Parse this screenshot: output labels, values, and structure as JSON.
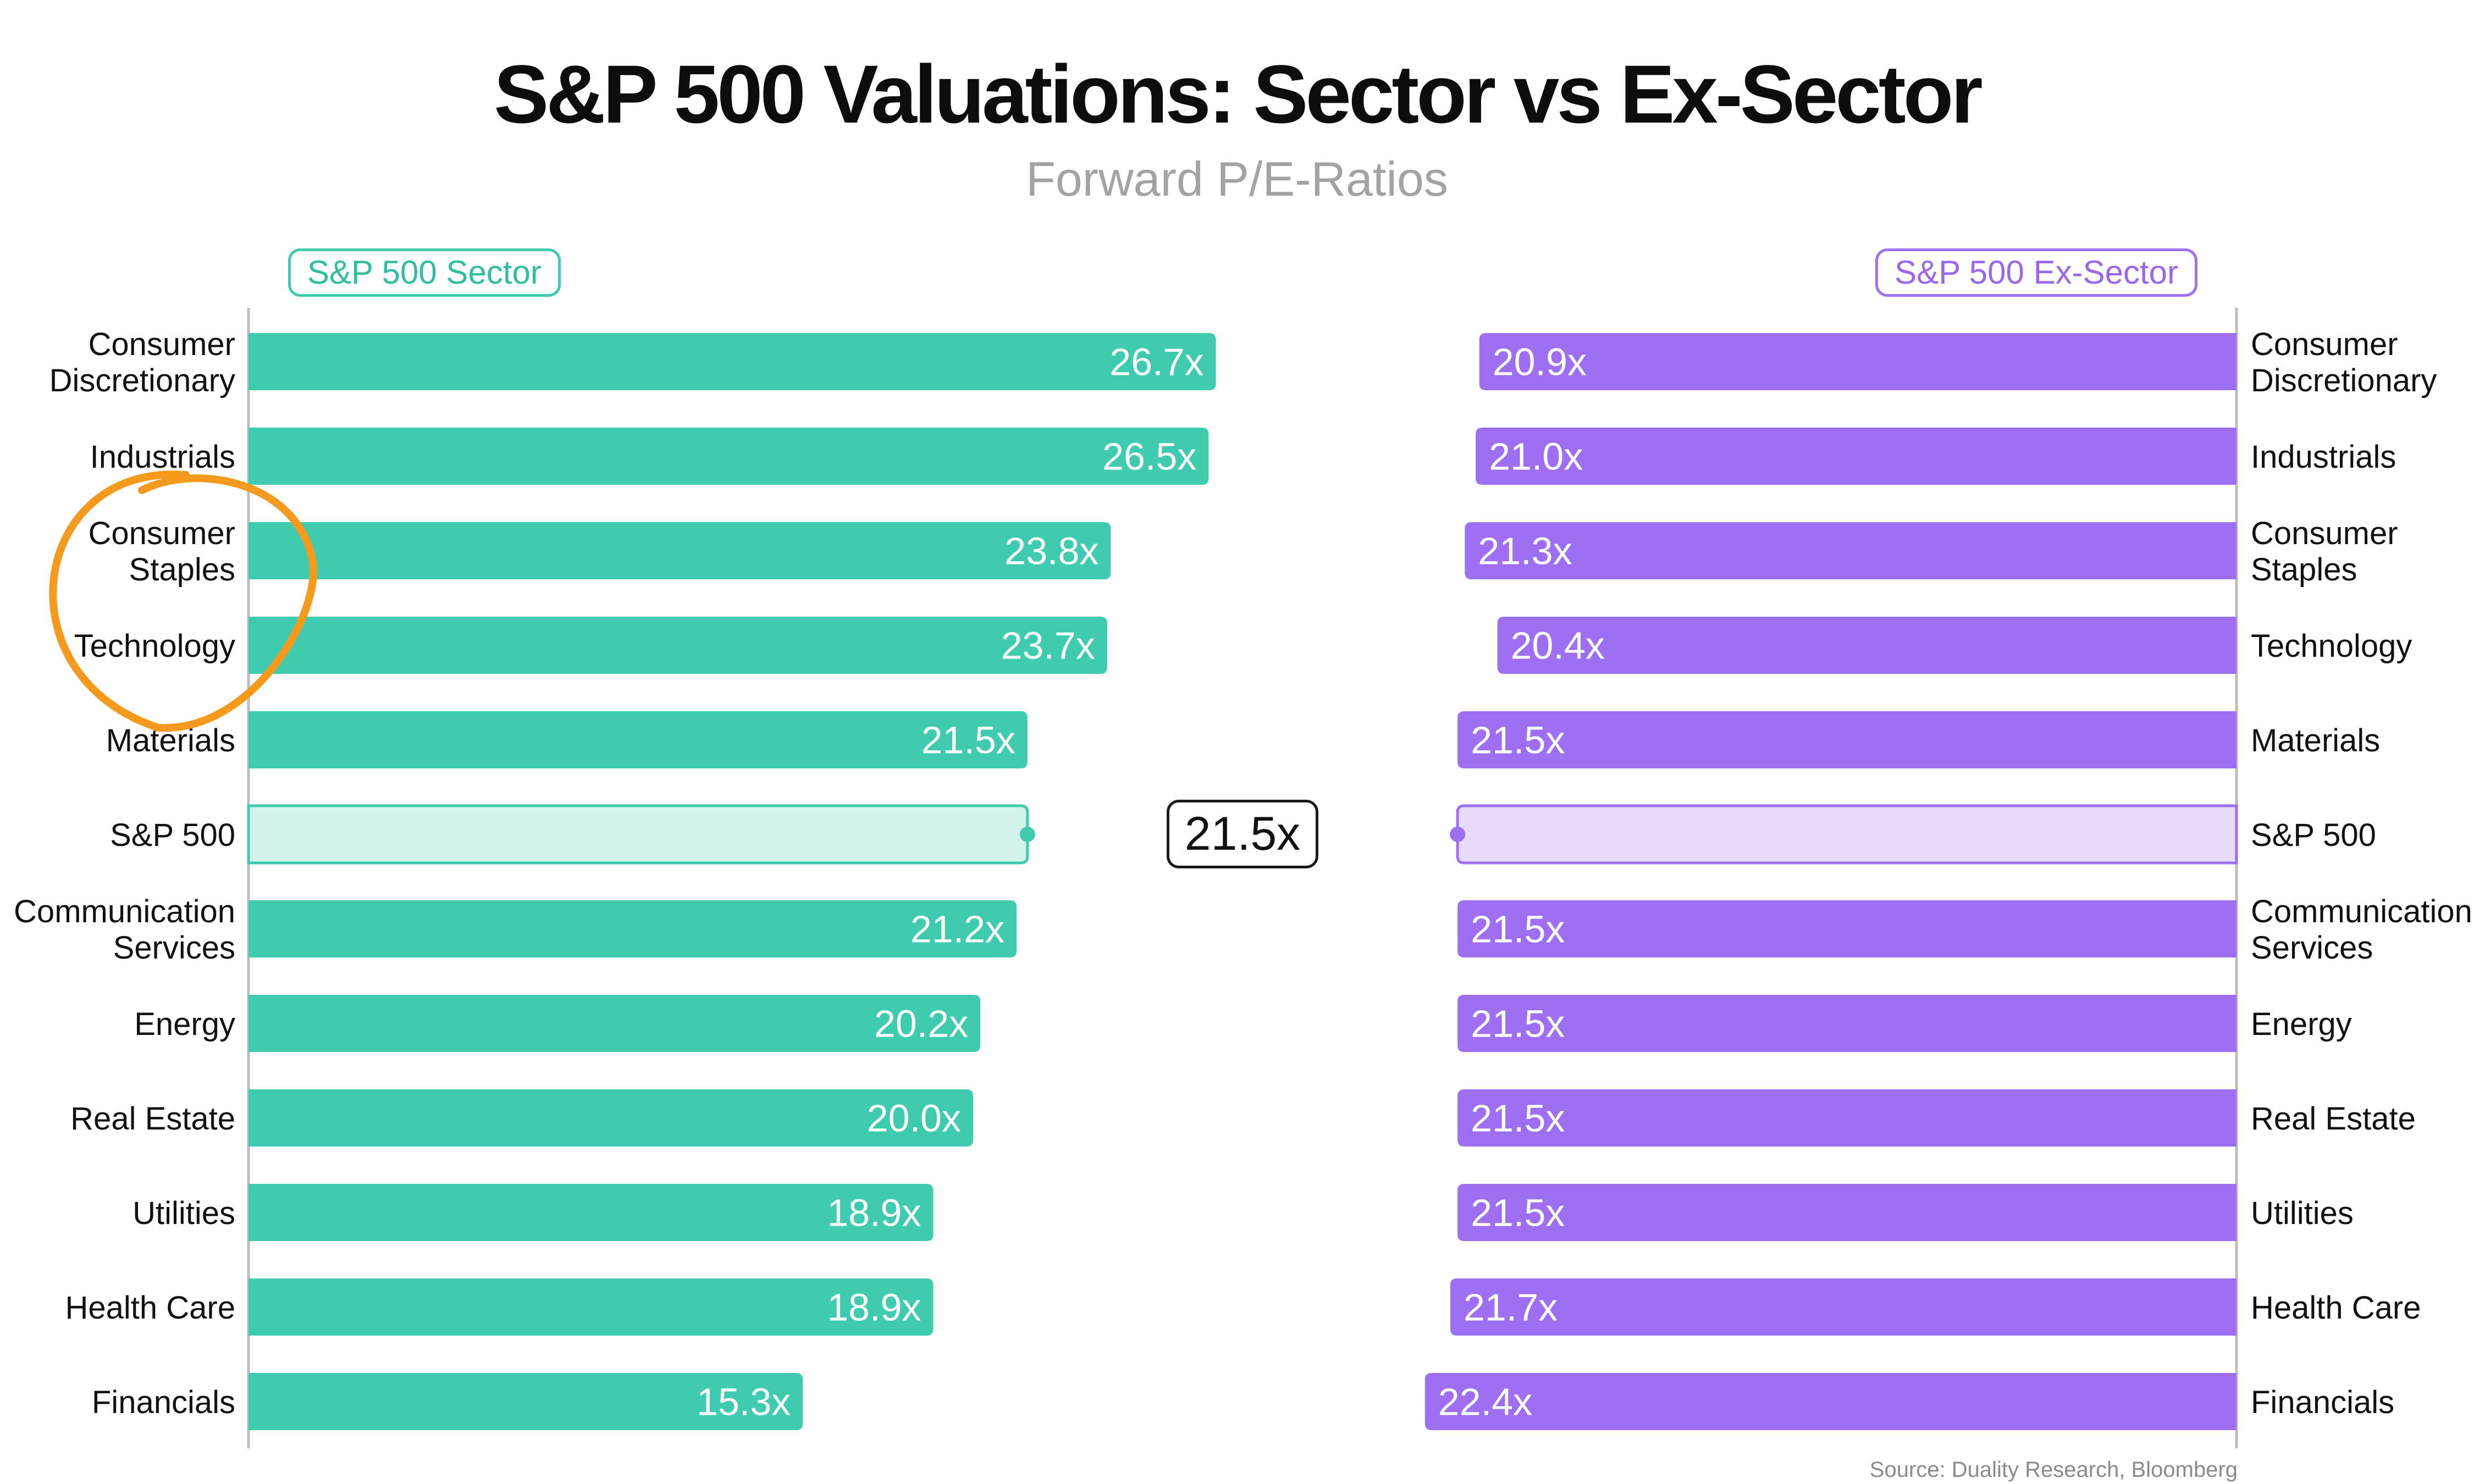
{
  "title": "S&P 500 Valuations: Sector vs Ex-Sector",
  "subtitle": "Forward P/E-Ratios",
  "legend": {
    "left": "S&P 500 Sector",
    "right": "S&P 500 Ex-Sector"
  },
  "source": "Source: Duality Research, Bloomberg",
  "reference_label": "21.5x",
  "colors": {
    "sector": "#3ecbaf",
    "ex_sector": "#9f6ff3",
    "sector_light": "#d2f2ea",
    "ex_sector_light": "#e6dbfb",
    "highlight_circle": "#f59a1c"
  },
  "highlight": {
    "shape": "hand-drawn circle",
    "categories": [
      "Consumer Staples",
      "Technology"
    ]
  },
  "chart_data": {
    "type": "bar",
    "orientation": "horizontal",
    "categories": [
      "Consumer Discretionary",
      "Industrials",
      "Consumer Staples",
      "Technology",
      "Materials",
      "S&P 500",
      "Communication Services",
      "Energy",
      "Real Estate",
      "Utilities",
      "Health Care",
      "Financials"
    ],
    "category_lines": [
      [
        "Consumer",
        "Discretionary"
      ],
      [
        "Industrials"
      ],
      [
        "Consumer",
        "Staples"
      ],
      [
        "Technology"
      ],
      [
        "Materials"
      ],
      [
        "S&P 500"
      ],
      [
        "Communication",
        "Services"
      ],
      [
        "Energy"
      ],
      [
        "Real Estate"
      ],
      [
        "Utilities"
      ],
      [
        "Health Care"
      ],
      [
        "Financials"
      ]
    ],
    "series": [
      {
        "name": "S&P 500 Sector",
        "values": [
          26.7,
          26.5,
          23.8,
          23.7,
          21.5,
          21.5,
          21.2,
          20.2,
          20.0,
          18.9,
          18.9,
          15.3
        ],
        "labels": [
          "26.7x",
          "26.5x",
          "23.8x",
          "23.7x",
          "21.5x",
          "",
          "21.2x",
          "20.2x",
          "20.0x",
          "18.9x",
          "18.9x",
          "15.3x"
        ]
      },
      {
        "name": "S&P 500 Ex-Sector",
        "values": [
          20.9,
          21.0,
          21.3,
          20.4,
          21.5,
          21.5,
          21.5,
          21.5,
          21.5,
          21.5,
          21.7,
          22.4
        ],
        "labels": [
          "20.9x",
          "21.0x",
          "21.3x",
          "20.4x",
          "21.5x",
          "",
          "21.5x",
          "21.5x",
          "21.5x",
          "21.5x",
          "21.7x",
          "22.4x"
        ]
      }
    ],
    "reference": {
      "category": "S&P 500",
      "value": 21.5,
      "label": "21.5x"
    },
    "xlim": [
      0,
      30
    ]
  }
}
